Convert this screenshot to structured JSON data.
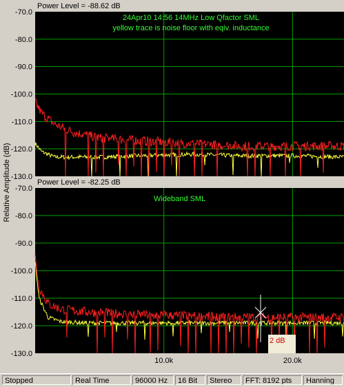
{
  "y_axis_label": "Relative Amplitude (dB)",
  "panels": [
    {
      "power_label": "Power Level = -88.62 dB",
      "annotation_line1": "24Apr10   14:56   14MHz    Low Qfactor SML",
      "annotation_line2": "yellow trace is noise floor with eqiv. inductance",
      "y_ticks": [
        "-70.0",
        "-80.0",
        "-90.0",
        "-100.0",
        "-110.0",
        "-120.0",
        "-130.0"
      ]
    },
    {
      "power_label": "Power Level = -82.25 dB",
      "annotation_line1": "Wideband SML",
      "y_ticks": [
        "-70.0",
        "-80.0",
        "-90.0",
        "-100.0",
        "-110.0",
        "-120.0",
        "-130.0"
      ]
    }
  ],
  "x_ticks": [
    "10.0k",
    "20.0k"
  ],
  "cursor_readout": "2 dB",
  "status": {
    "state": "Stopped",
    "mode": "Real Time",
    "sample_rate": "96000 Hz",
    "bits": "16 Bit",
    "channels": "Stereo",
    "fft": "FFT: 8192 pts",
    "window": "Hanning"
  },
  "chart_data": [
    {
      "type": "line",
      "xlabel": "",
      "ylabel": "Relative Amplitude (dB)",
      "xlim": [
        0,
        24000
      ],
      "ylim": [
        -130,
        -70
      ],
      "series": [
        {
          "color": "#ff2020",
          "x": [
            0,
            500,
            1500,
            3000,
            5000,
            8000,
            12000,
            16000,
            20000,
            24000
          ],
          "values": [
            -103,
            -107,
            -111,
            -114,
            -116,
            -117,
            -118,
            -119,
            -119,
            -119
          ]
        },
        {
          "color": "#ffff40",
          "x": [
            0,
            500,
            1500,
            3000,
            5000,
            8000,
            12000,
            16000,
            20000,
            24000
          ],
          "values": [
            -118,
            -121,
            -123,
            -123,
            -123,
            -122.5,
            -122,
            -122.5,
            -122.5,
            -123
          ]
        }
      ]
    },
    {
      "type": "line",
      "xlabel": "",
      "ylabel": "Relative Amplitude (dB)",
      "xlim": [
        0,
        24000
      ],
      "ylim": [
        -130,
        -70
      ],
      "series": [
        {
          "color": "#ff2020",
          "x": [
            0,
            300,
            1000,
            2000,
            4000,
            8000,
            12000,
            16000,
            20000,
            24000
          ],
          "values": [
            -95,
            -106,
            -112,
            -114,
            -115,
            -116,
            -116.5,
            -117,
            -117,
            -117
          ]
        },
        {
          "color": "#ffff40",
          "x": [
            0,
            300,
            1000,
            2000,
            4000,
            8000,
            12000,
            16000,
            20000,
            24000
          ],
          "values": [
            -97,
            -110,
            -117,
            -118.5,
            -119,
            -119,
            -119,
            -119,
            -119,
            -119
          ]
        }
      ]
    }
  ]
}
